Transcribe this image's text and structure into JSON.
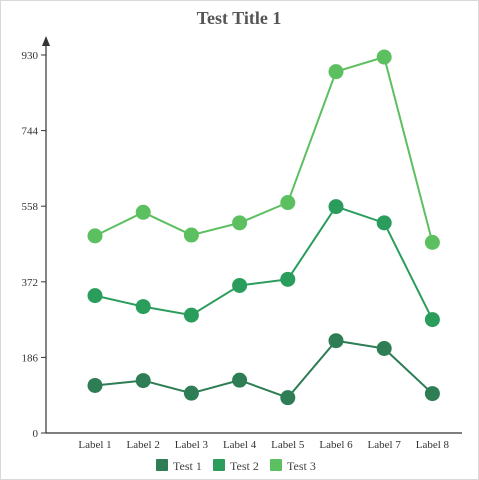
{
  "chart_data": {
    "type": "line",
    "title": "Test Title 1",
    "xlabel": "",
    "ylabel": "",
    "categories": [
      "Label 1",
      "Label 2",
      "Label 3",
      "Label 4",
      "Label 5",
      "Label 6",
      "Label 7",
      "Label 8"
    ],
    "yticks": [
      "0",
      "186",
      "372",
      "558",
      "744",
      "930"
    ],
    "ylim": [
      0,
      930
    ],
    "grid": false,
    "legend_position": "bottom",
    "series": [
      {
        "name": "Test 1",
        "color": "#2e7d55",
        "values": [
          117,
          129,
          98,
          130,
          87,
          227,
          208,
          97
        ]
      },
      {
        "name": "Test 2",
        "color": "#2a9d5c",
        "values": [
          338,
          311,
          290,
          363,
          378,
          557,
          517,
          279
        ]
      },
      {
        "name": "Test 3",
        "color": "#5cbf60",
        "values": [
          485,
          543,
          487,
          517,
          567,
          889,
          925,
          469
        ]
      }
    ]
  }
}
